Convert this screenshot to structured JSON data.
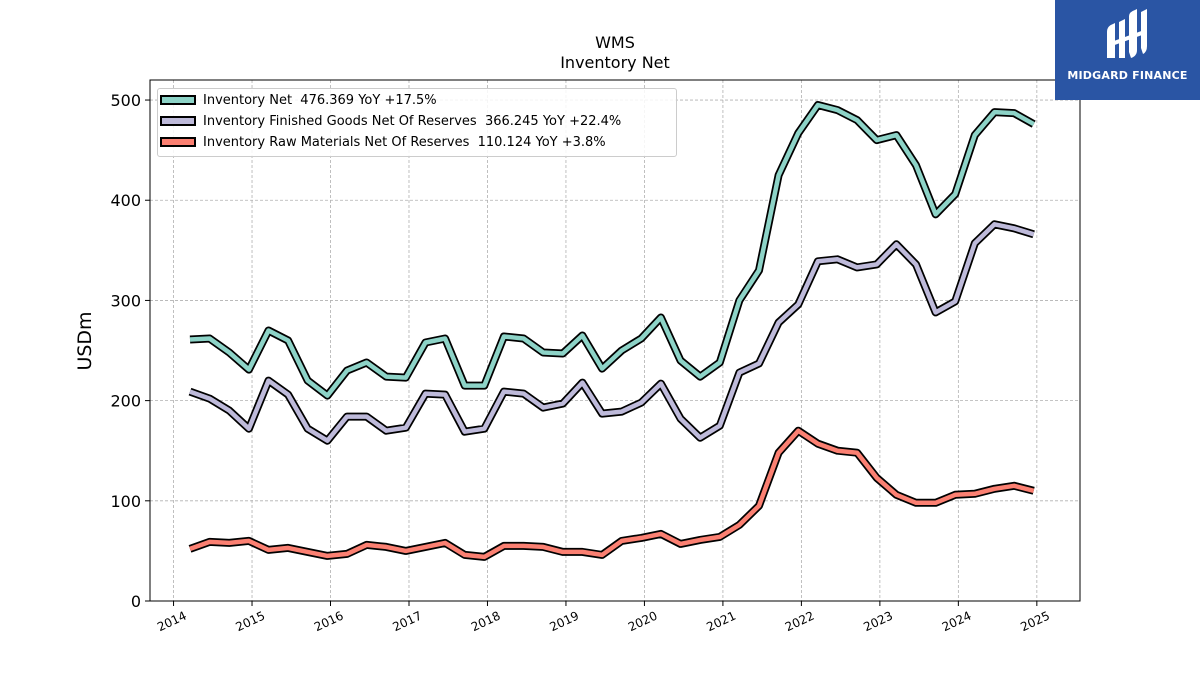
{
  "logo": {
    "text": "MIDGARD FINANCE"
  },
  "chart_data": {
    "type": "line",
    "title": "WMS",
    "subtitle": "Inventory Net",
    "xlabel": "",
    "ylabel": "USDm",
    "ylim": [
      0,
      520
    ],
    "xlim": [
      2013.7,
      2025.55
    ],
    "yticks": [
      0,
      100,
      200,
      300,
      400,
      500
    ],
    "xticks": [
      2014,
      2015,
      2016,
      2017,
      2018,
      2019,
      2020,
      2021,
      2022,
      2023,
      2024,
      2025
    ],
    "grid": true,
    "legend_position": "upper-left",
    "x": [
      2014.21,
      2014.46,
      2014.71,
      2014.96,
      2015.21,
      2015.46,
      2015.71,
      2015.96,
      2016.21,
      2016.46,
      2016.71,
      2016.96,
      2017.21,
      2017.46,
      2017.71,
      2017.96,
      2018.21,
      2018.46,
      2018.71,
      2018.96,
      2019.21,
      2019.46,
      2019.71,
      2019.96,
      2020.21,
      2020.46,
      2020.71,
      2020.96,
      2021.21,
      2021.46,
      2021.71,
      2021.96,
      2022.21,
      2022.46,
      2022.71,
      2022.96,
      2023.21,
      2023.46,
      2023.71,
      2023.96,
      2024.21,
      2024.46,
      2024.71,
      2024.96
    ],
    "series": [
      {
        "name": "Inventory Net  476.369 YoY +17.5%",
        "color": "#8dd3c7",
        "values": [
          261,
          262,
          248,
          231,
          270,
          260,
          220,
          205,
          230,
          238,
          224,
          223,
          258,
          262,
          215,
          215,
          264,
          262,
          248,
          247,
          265,
          232,
          250,
          262,
          283,
          240,
          224,
          238,
          300,
          330,
          425,
          467,
          495,
          490,
          480,
          460,
          465,
          435,
          386,
          406,
          465,
          488,
          487,
          476
        ]
      },
      {
        "name": "Inventory Finished Goods Net Of Reserves  366.245 YoY +22.4%",
        "color": "#bebada",
        "values": [
          209,
          202,
          190,
          172,
          220,
          206,
          172,
          160,
          184,
          184,
          170,
          173,
          207,
          206,
          169,
          172,
          209,
          207,
          193,
          197,
          218,
          187,
          189,
          198,
          217,
          182,
          163,
          175,
          228,
          237,
          278,
          296,
          339,
          341,
          333,
          336,
          356,
          336,
          288,
          299,
          357,
          376,
          372,
          366
        ]
      },
      {
        "name": "Inventory Raw Materials Net Of Reserves  110.124 YoY +3.8%",
        "color": "#fb8072",
        "values": [
          52,
          59,
          58,
          60,
          51,
          53,
          49,
          45,
          47,
          56,
          54,
          50,
          54,
          58,
          46,
          44,
          55,
          55,
          54,
          49,
          49,
          46,
          60,
          63,
          67,
          57,
          61,
          64,
          76,
          95,
          148,
          170,
          157,
          150,
          148,
          123,
          106,
          98,
          98,
          106,
          107,
          112,
          115,
          110
        ]
      }
    ]
  }
}
